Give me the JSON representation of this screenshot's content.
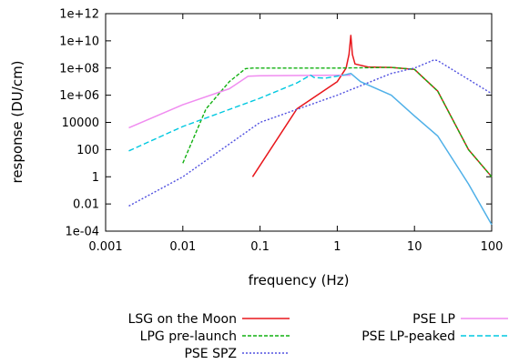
{
  "chart_data": {
    "type": "line",
    "xlabel": "frequency (Hz)",
    "ylabel": "response (DU/cm)",
    "x_scale": "log",
    "y_scale": "log",
    "xlim": [
      0.001,
      100
    ],
    "ylim": [
      0.0001,
      1000000000000
    ],
    "grid": false,
    "legend": "bottom",
    "x_ticks": [
      {
        "value": 0.001,
        "label": "0.001"
      },
      {
        "value": 0.01,
        "label": "0.01"
      },
      {
        "value": 0.1,
        "label": "0.1"
      },
      {
        "value": 1,
        "label": "1"
      },
      {
        "value": 10,
        "label": "10"
      },
      {
        "value": 100,
        "label": "100"
      }
    ],
    "y_ticks": [
      {
        "value": 0.0001,
        "label": "1e-04"
      },
      {
        "value": 0.01,
        "label": "0.01"
      },
      {
        "value": 1,
        "label": "1"
      },
      {
        "value": 100,
        "label": "100"
      },
      {
        "value": 10000,
        "label": "10000"
      },
      {
        "value": 1000000,
        "label": "1e+06"
      },
      {
        "value": 100000000,
        "label": "1e+08"
      },
      {
        "value": 10000000000,
        "label": "1e+10"
      },
      {
        "value": 1000000000000,
        "label": "1e+12"
      }
    ],
    "series": [
      {
        "name": "LSG on the Moon",
        "color": "#e8161b",
        "dash": "solid",
        "points": [
          [
            0.08,
            1
          ],
          [
            0.3,
            100000
          ],
          [
            1,
            10000000
          ],
          [
            1.3,
            100000000
          ],
          [
            1.42,
            1000000000
          ],
          [
            1.5,
            25000000000
          ],
          [
            1.57,
            1000000000
          ],
          [
            1.7,
            200000000
          ],
          [
            2.5,
            120000000
          ],
          [
            5,
            110000000
          ],
          [
            10,
            80000000
          ],
          [
            12,
            30000000
          ],
          [
            20,
            2000000
          ],
          [
            50,
            100
          ],
          [
            100,
            1
          ]
        ]
      },
      {
        "name": "LPG pre-launch",
        "color": "#11b011",
        "dash": "4 2",
        "points": [
          [
            0.01,
            10
          ],
          [
            0.02,
            100000
          ],
          [
            0.04,
            10000000
          ],
          [
            0.065,
            90000000
          ],
          [
            0.08,
            100000000
          ],
          [
            1,
            100000000
          ],
          [
            5,
            110000000
          ],
          [
            10,
            80000000
          ],
          [
            12,
            30000000
          ],
          [
            20,
            2000000
          ],
          [
            50,
            100
          ],
          [
            100,
            1
          ]
        ]
      },
      {
        "name": "PSE SPZ",
        "color": "#5050e0",
        "dash": "2 2",
        "points": [
          [
            0.002,
            0.007
          ],
          [
            0.01,
            1
          ],
          [
            0.1,
            10000
          ],
          [
            1,
            1000000
          ],
          [
            5,
            40000000
          ],
          [
            10,
            100000000
          ],
          [
            18,
            400000000
          ],
          [
            20,
            350000000
          ],
          [
            100,
            1300000
          ]
        ]
      },
      {
        "name": "PSE LP",
        "color": "#f08cf0",
        "dash": "solid",
        "points": [
          [
            0.002,
            4000
          ],
          [
            0.01,
            200000
          ],
          [
            0.04,
            3000000
          ],
          [
            0.07,
            25000000
          ],
          [
            0.1,
            27000000
          ],
          [
            1,
            30000000
          ],
          [
            1.5,
            30000000
          ]
        ]
      },
      {
        "name": "PSE LP-peaked",
        "color": "#00c8e0",
        "dash": "6 3",
        "points": [
          [
            0.002,
            80
          ],
          [
            0.01,
            5000
          ],
          [
            0.1,
            600000
          ],
          [
            0.3,
            8000000
          ],
          [
            0.45,
            30000000
          ],
          [
            0.5,
            20000000
          ],
          [
            0.7,
            18000000
          ],
          [
            1,
            25000000
          ],
          [
            1.2,
            30000000
          ]
        ]
      },
      {
        "name": "",
        "color": "#4fb0e8",
        "dash": "solid",
        "points": [
          [
            1.2,
            30000000
          ],
          [
            1.5,
            40000000
          ],
          [
            2,
            10000000
          ],
          [
            5,
            1000000
          ],
          [
            10,
            30000
          ],
          [
            20,
            1000
          ],
          [
            50,
            0.3
          ],
          [
            100,
            0.0003
          ]
        ]
      }
    ]
  }
}
